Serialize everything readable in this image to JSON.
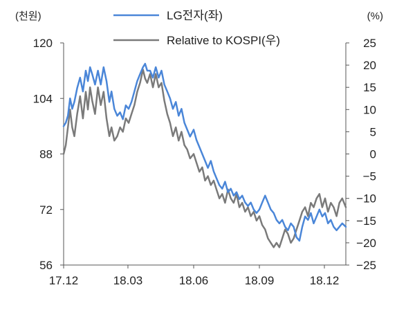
{
  "chart_data": {
    "type": "line",
    "left_unit": "(천원)",
    "right_unit": "(%)",
    "x_tick_labels": [
      "17.12",
      "18.03",
      "18.06",
      "18.09",
      "18.12"
    ],
    "x_tick_dates": [
      "2017-12-01",
      "2018-03-01",
      "2018-06-01",
      "2018-09-01",
      "2018-12-01"
    ],
    "x_range": [
      "2017-12-01",
      "2018-12-31"
    ],
    "y_left": {
      "ticks": [
        "120",
        "104",
        "88",
        "72",
        "56"
      ],
      "lim": [
        56,
        120
      ]
    },
    "y_right": {
      "ticks": [
        "25",
        "20",
        "15",
        "10",
        "5",
        "0",
        "−5",
        "−10",
        "−15",
        "−20",
        "−25"
      ],
      "lim": [
        -25,
        25
      ]
    },
    "grid": false,
    "legend_position": "top",
    "series": [
      {
        "name": "LG전자(좌)",
        "axis": "left",
        "color": "#4a86d8",
        "points": [
          [
            "2017-12-01",
            96
          ],
          [
            "2017-12-04",
            97
          ],
          [
            "2017-12-07",
            99
          ],
          [
            "2017-12-10",
            104
          ],
          [
            "2017-12-13",
            101
          ],
          [
            "2017-12-16",
            103
          ],
          [
            "2017-12-20",
            107
          ],
          [
            "2017-12-24",
            110
          ],
          [
            "2017-12-28",
            106
          ],
          [
            "2018-01-01",
            112
          ],
          [
            "2018-01-04",
            109
          ],
          [
            "2018-01-07",
            113
          ],
          [
            "2018-01-10",
            111
          ],
          [
            "2018-01-14",
            108
          ],
          [
            "2018-01-18",
            112
          ],
          [
            "2018-01-22",
            108
          ],
          [
            "2018-01-26",
            113
          ],
          [
            "2018-01-30",
            109
          ],
          [
            "2018-02-03",
            103
          ],
          [
            "2018-02-06",
            106
          ],
          [
            "2018-02-10",
            101
          ],
          [
            "2018-02-14",
            99
          ],
          [
            "2018-02-18",
            100
          ],
          [
            "2018-02-22",
            98
          ],
          [
            "2018-02-26",
            102
          ],
          [
            "2018-03-02",
            101
          ],
          [
            "2018-03-06",
            103
          ],
          [
            "2018-03-10",
            106
          ],
          [
            "2018-03-14",
            109
          ],
          [
            "2018-03-18",
            111
          ],
          [
            "2018-03-22",
            113
          ],
          [
            "2018-03-25",
            114
          ],
          [
            "2018-03-28",
            112
          ],
          [
            "2018-04-01",
            112
          ],
          [
            "2018-04-05",
            110
          ],
          [
            "2018-04-09",
            113
          ],
          [
            "2018-04-13",
            110
          ],
          [
            "2018-04-17",
            112
          ],
          [
            "2018-04-21",
            108
          ],
          [
            "2018-04-25",
            106
          ],
          [
            "2018-04-29",
            104
          ],
          [
            "2018-05-03",
            101
          ],
          [
            "2018-05-07",
            103
          ],
          [
            "2018-05-11",
            99
          ],
          [
            "2018-05-15",
            101
          ],
          [
            "2018-05-19",
            97
          ],
          [
            "2018-05-23",
            95
          ],
          [
            "2018-05-27",
            93
          ],
          [
            "2018-06-01",
            95
          ],
          [
            "2018-06-05",
            92
          ],
          [
            "2018-06-09",
            90
          ],
          [
            "2018-06-13",
            88
          ],
          [
            "2018-06-17",
            86
          ],
          [
            "2018-06-21",
            84
          ],
          [
            "2018-06-25",
            86
          ],
          [
            "2018-06-29",
            83
          ],
          [
            "2018-07-03",
            81
          ],
          [
            "2018-07-07",
            79
          ],
          [
            "2018-07-11",
            78
          ],
          [
            "2018-07-15",
            80
          ],
          [
            "2018-07-19",
            77
          ],
          [
            "2018-07-23",
            78
          ],
          [
            "2018-07-27",
            76
          ],
          [
            "2018-07-31",
            77
          ],
          [
            "2018-08-04",
            75
          ],
          [
            "2018-08-08",
            76
          ],
          [
            "2018-08-12",
            74
          ],
          [
            "2018-08-16",
            73
          ],
          [
            "2018-08-20",
            74
          ],
          [
            "2018-08-24",
            72
          ],
          [
            "2018-08-28",
            71
          ],
          [
            "2018-09-01",
            72
          ],
          [
            "2018-09-05",
            74
          ],
          [
            "2018-09-09",
            76
          ],
          [
            "2018-09-13",
            74
          ],
          [
            "2018-09-17",
            72
          ],
          [
            "2018-09-21",
            71
          ],
          [
            "2018-09-25",
            69
          ],
          [
            "2018-09-29",
            68
          ],
          [
            "2018-10-03",
            69
          ],
          [
            "2018-10-07",
            67
          ],
          [
            "2018-10-11",
            66
          ],
          [
            "2018-10-15",
            68
          ],
          [
            "2018-10-19",
            67
          ],
          [
            "2018-10-23",
            64
          ],
          [
            "2018-10-27",
            63
          ],
          [
            "2018-10-31",
            67
          ],
          [
            "2018-11-04",
            70
          ],
          [
            "2018-11-08",
            69
          ],
          [
            "2018-11-12",
            71
          ],
          [
            "2018-11-16",
            68
          ],
          [
            "2018-11-20",
            70
          ],
          [
            "2018-11-24",
            72
          ],
          [
            "2018-11-28",
            70
          ],
          [
            "2018-12-02",
            71
          ],
          [
            "2018-12-06",
            68
          ],
          [
            "2018-12-10",
            69
          ],
          [
            "2018-12-14",
            67
          ],
          [
            "2018-12-18",
            66
          ],
          [
            "2018-12-22",
            67
          ],
          [
            "2018-12-26",
            68
          ],
          [
            "2018-12-31",
            67
          ]
        ]
      },
      {
        "name": "Relative to KOSPI(우)",
        "axis": "right",
        "color": "#7a7a7a",
        "points": [
          [
            "2017-12-01",
            0
          ],
          [
            "2017-12-04",
            2
          ],
          [
            "2017-12-07",
            6
          ],
          [
            "2017-12-10",
            10
          ],
          [
            "2017-12-13",
            6
          ],
          [
            "2017-12-16",
            4
          ],
          [
            "2017-12-20",
            9
          ],
          [
            "2017-12-24",
            13
          ],
          [
            "2017-12-28",
            8
          ],
          [
            "2018-01-01",
            14
          ],
          [
            "2018-01-04",
            10
          ],
          [
            "2018-01-07",
            15
          ],
          [
            "2018-01-10",
            12
          ],
          [
            "2018-01-14",
            9
          ],
          [
            "2018-01-18",
            15
          ],
          [
            "2018-01-22",
            11
          ],
          [
            "2018-01-26",
            14
          ],
          [
            "2018-01-30",
            8
          ],
          [
            "2018-02-03",
            4
          ],
          [
            "2018-02-06",
            6
          ],
          [
            "2018-02-10",
            3
          ],
          [
            "2018-02-14",
            4
          ],
          [
            "2018-02-18",
            6
          ],
          [
            "2018-02-22",
            5
          ],
          [
            "2018-02-26",
            8
          ],
          [
            "2018-03-02",
            7
          ],
          [
            "2018-03-06",
            9
          ],
          [
            "2018-03-10",
            11
          ],
          [
            "2018-03-14",
            14
          ],
          [
            "2018-03-18",
            16
          ],
          [
            "2018-03-22",
            19
          ],
          [
            "2018-03-25",
            17
          ],
          [
            "2018-03-28",
            16
          ],
          [
            "2018-04-01",
            18
          ],
          [
            "2018-04-05",
            15
          ],
          [
            "2018-04-09",
            18
          ],
          [
            "2018-04-13",
            15
          ],
          [
            "2018-04-17",
            16
          ],
          [
            "2018-04-21",
            12
          ],
          [
            "2018-04-25",
            9
          ],
          [
            "2018-04-29",
            7
          ],
          [
            "2018-05-03",
            4
          ],
          [
            "2018-05-07",
            6
          ],
          [
            "2018-05-11",
            3
          ],
          [
            "2018-05-15",
            5
          ],
          [
            "2018-05-19",
            2
          ],
          [
            "2018-05-23",
            1
          ],
          [
            "2018-05-27",
            -1
          ],
          [
            "2018-06-01",
            0
          ],
          [
            "2018-06-05",
            -2
          ],
          [
            "2018-06-09",
            -4
          ],
          [
            "2018-06-13",
            -3
          ],
          [
            "2018-06-17",
            -6
          ],
          [
            "2018-06-21",
            -5
          ],
          [
            "2018-06-25",
            -7
          ],
          [
            "2018-06-29",
            -6
          ],
          [
            "2018-07-03",
            -8
          ],
          [
            "2018-07-07",
            -10
          ],
          [
            "2018-07-11",
            -9
          ],
          [
            "2018-07-15",
            -11
          ],
          [
            "2018-07-19",
            -8
          ],
          [
            "2018-07-23",
            -10
          ],
          [
            "2018-07-27",
            -11
          ],
          [
            "2018-07-31",
            -9
          ],
          [
            "2018-08-04",
            -12
          ],
          [
            "2018-08-08",
            -11
          ],
          [
            "2018-08-12",
            -13
          ],
          [
            "2018-08-16",
            -12
          ],
          [
            "2018-08-20",
            -14
          ],
          [
            "2018-08-24",
            -13
          ],
          [
            "2018-08-28",
            -15
          ],
          [
            "2018-09-01",
            -14
          ],
          [
            "2018-09-05",
            -16
          ],
          [
            "2018-09-09",
            -17
          ],
          [
            "2018-09-13",
            -19
          ],
          [
            "2018-09-17",
            -20
          ],
          [
            "2018-09-21",
            -21
          ],
          [
            "2018-09-25",
            -20
          ],
          [
            "2018-09-29",
            -21
          ],
          [
            "2018-10-03",
            -19
          ],
          [
            "2018-10-07",
            -17
          ],
          [
            "2018-10-11",
            -18
          ],
          [
            "2018-10-15",
            -20
          ],
          [
            "2018-10-19",
            -19
          ],
          [
            "2018-10-23",
            -17
          ],
          [
            "2018-10-27",
            -15
          ],
          [
            "2018-10-31",
            -13
          ],
          [
            "2018-11-04",
            -12
          ],
          [
            "2018-11-08",
            -14
          ],
          [
            "2018-11-12",
            -11
          ],
          [
            "2018-11-16",
            -12
          ],
          [
            "2018-11-20",
            -10
          ],
          [
            "2018-11-24",
            -9
          ],
          [
            "2018-11-28",
            -12
          ],
          [
            "2018-12-02",
            -10
          ],
          [
            "2018-12-06",
            -13
          ],
          [
            "2018-12-10",
            -11
          ],
          [
            "2018-12-14",
            -12
          ],
          [
            "2018-12-18",
            -14
          ],
          [
            "2018-12-22",
            -11
          ],
          [
            "2018-12-26",
            -10
          ],
          [
            "2018-12-31",
            -12
          ]
        ]
      }
    ]
  }
}
